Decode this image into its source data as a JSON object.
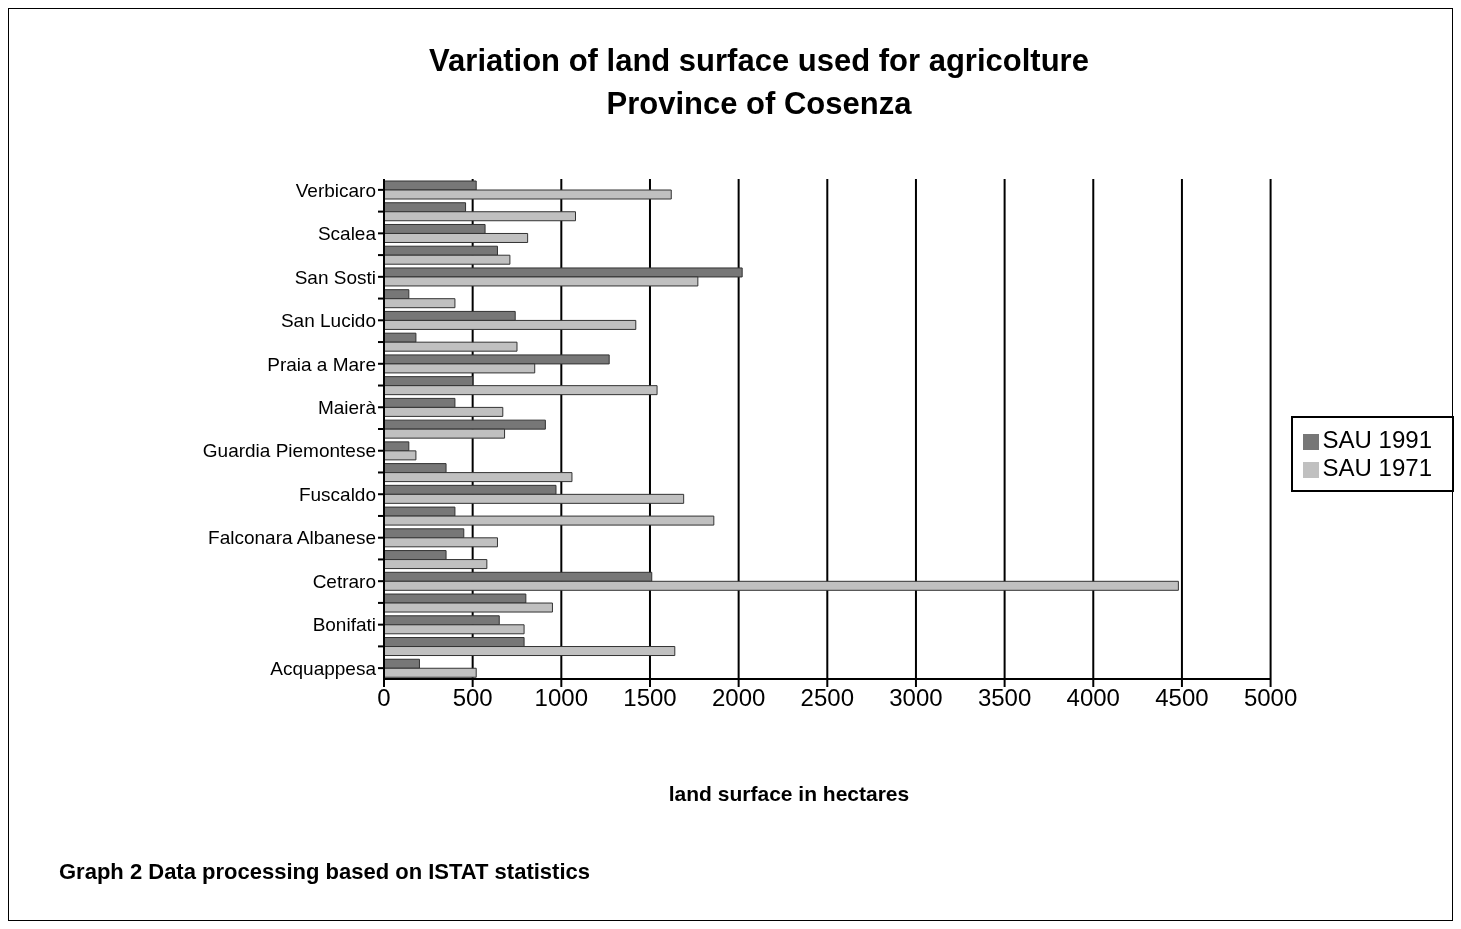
{
  "chart_data": {
    "type": "bar",
    "orientation": "horizontal",
    "title": "Variation of land surface used for agricolture\nProvince of Cosenza",
    "xlabel": "land surface in hectares",
    "categories": [
      "Verbicaro",
      null,
      "Scalea",
      null,
      "San Sosti",
      null,
      "San Lucido",
      null,
      "Praia a Mare",
      null,
      "Maierà",
      null,
      "Guardia Piemontese",
      null,
      "Fuscaldo",
      null,
      "Falconara Albanese",
      null,
      "Cetraro",
      null,
      "Bonifati",
      null,
      "Acquappesa"
    ],
    "series": [
      {
        "name": "SAU 1991",
        "color": "#777777",
        "values": [
          520,
          460,
          570,
          640,
          2020,
          140,
          740,
          180,
          1270,
          500,
          400,
          910,
          140,
          350,
          970,
          400,
          450,
          350,
          1510,
          800,
          650,
          790,
          200
        ]
      },
      {
        "name": "SAU 1971",
        "color": "#c0c0c0",
        "values": [
          1620,
          1080,
          810,
          710,
          1770,
          400,
          1420,
          750,
          850,
          1540,
          670,
          680,
          180,
          1060,
          1690,
          1860,
          640,
          580,
          4480,
          950,
          790,
          1640,
          520
        ]
      }
    ],
    "xlim": [
      0,
      5000
    ],
    "xticks": [
      0,
      500,
      1000,
      1500,
      2000,
      2500,
      3000,
      3500,
      4000,
      4500,
      5000
    ],
    "grid": "x",
    "legend": "right",
    "annotations": [
      "Graph 2 Data processing based on ISTAT statistics"
    ]
  }
}
